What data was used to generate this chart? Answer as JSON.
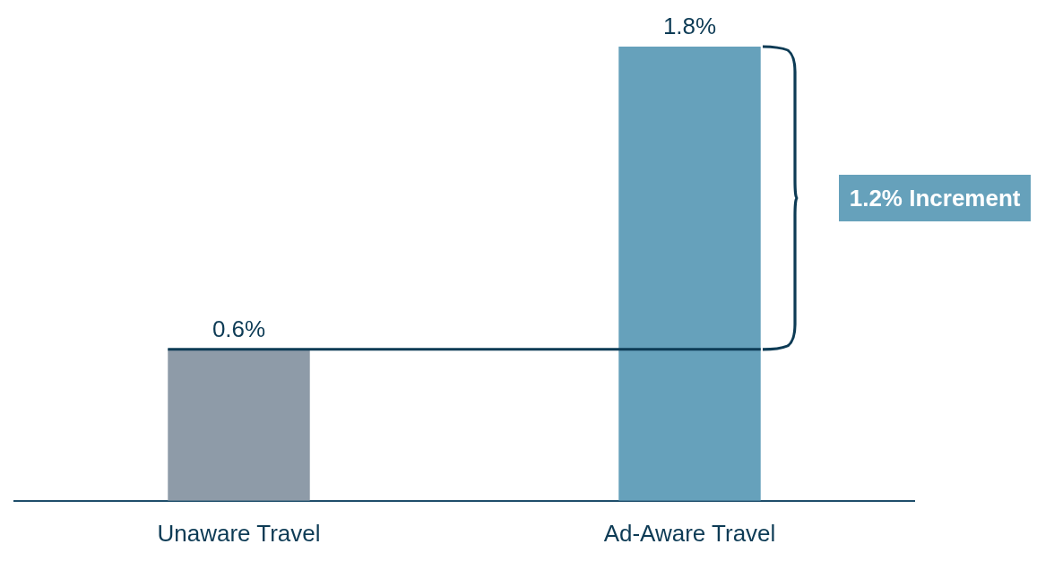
{
  "chart_data": {
    "type": "bar",
    "categories": [
      "Unaware Travel",
      "Ad-Aware Travel"
    ],
    "values": [
      0.6,
      1.8
    ],
    "colors": [
      "#8e9ba8",
      "#66a1bb"
    ],
    "value_labels": [
      "0.6%",
      "1.8%"
    ],
    "ylim": [
      0,
      1.8
    ],
    "tick_labels": "x",
    "grid": false,
    "legend": false,
    "ref_lines": [
      {
        "axis": "y",
        "value": 0.6,
        "color": "#0d3b55"
      }
    ],
    "annotations": [
      "1.2% Increment"
    ]
  }
}
